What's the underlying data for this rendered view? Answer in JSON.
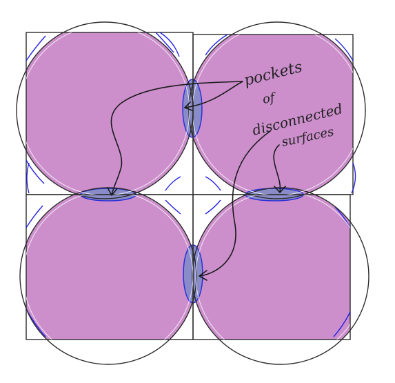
{
  "colors": {
    "fill": "#cc8fcc",
    "pocket": "#8a8cc9",
    "pocket_edge": "#2a2fd8",
    "outline": "#2b2b2b",
    "blue_curves": "#2323e6",
    "ink": "#1a1a1a"
  },
  "annotations": {
    "line1": "pockets",
    "line2": "of",
    "line3": "disconnected",
    "line4": "surfaces"
  }
}
